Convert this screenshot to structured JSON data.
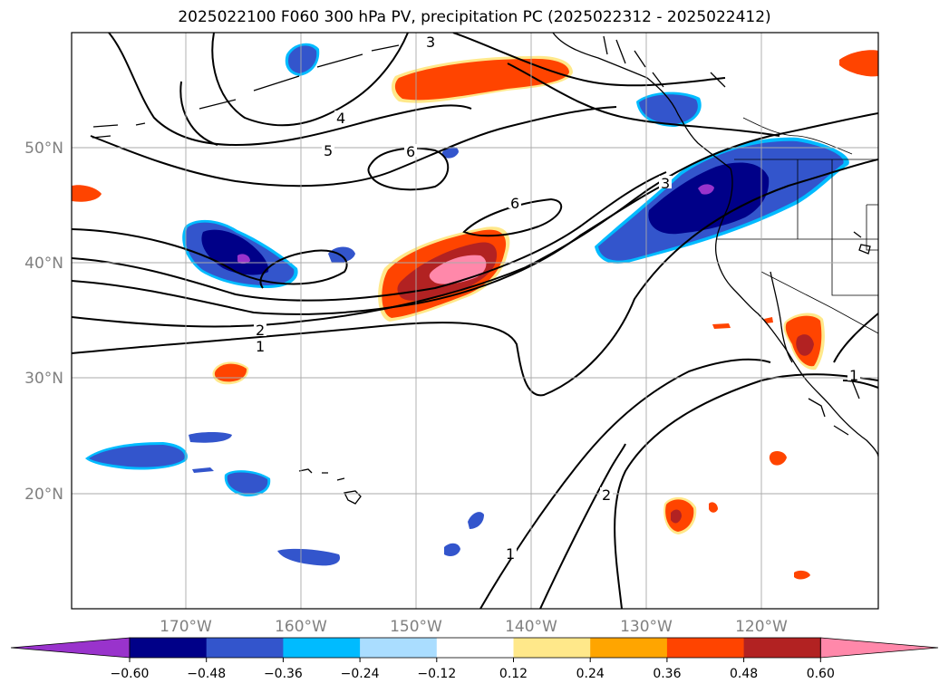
{
  "title": "2025022100 F060 300 hPa PV, precipitation PC (2025022312 - 2025022412)",
  "map": {
    "lon_labels": [
      "170°W",
      "160°W",
      "150°W",
      "140°W",
      "130°W",
      "120°W"
    ],
    "lat_labels": [
      "50°N",
      "40°N",
      "30°N",
      "20°N"
    ],
    "grid": true
  },
  "contours": {
    "labels": [
      "1",
      "2",
      "3",
      "4",
      "5",
      "6",
      "6",
      "3",
      "2",
      "1",
      "1",
      "3"
    ]
  },
  "colorbar": {
    "ticks": [
      "−0.60",
      "−0.48",
      "−0.36",
      "−0.24",
      "−0.12",
      "0.12",
      "0.24",
      "0.36",
      "0.48",
      "0.60"
    ],
    "colors": [
      "#9933cc",
      "#000088",
      "#3355cc",
      "#00bbff",
      "#aaddff",
      "#ffffff",
      "#ffe88a",
      "#ffa500",
      "#ff4400",
      "#b22222",
      "#ff88aa"
    ]
  }
}
